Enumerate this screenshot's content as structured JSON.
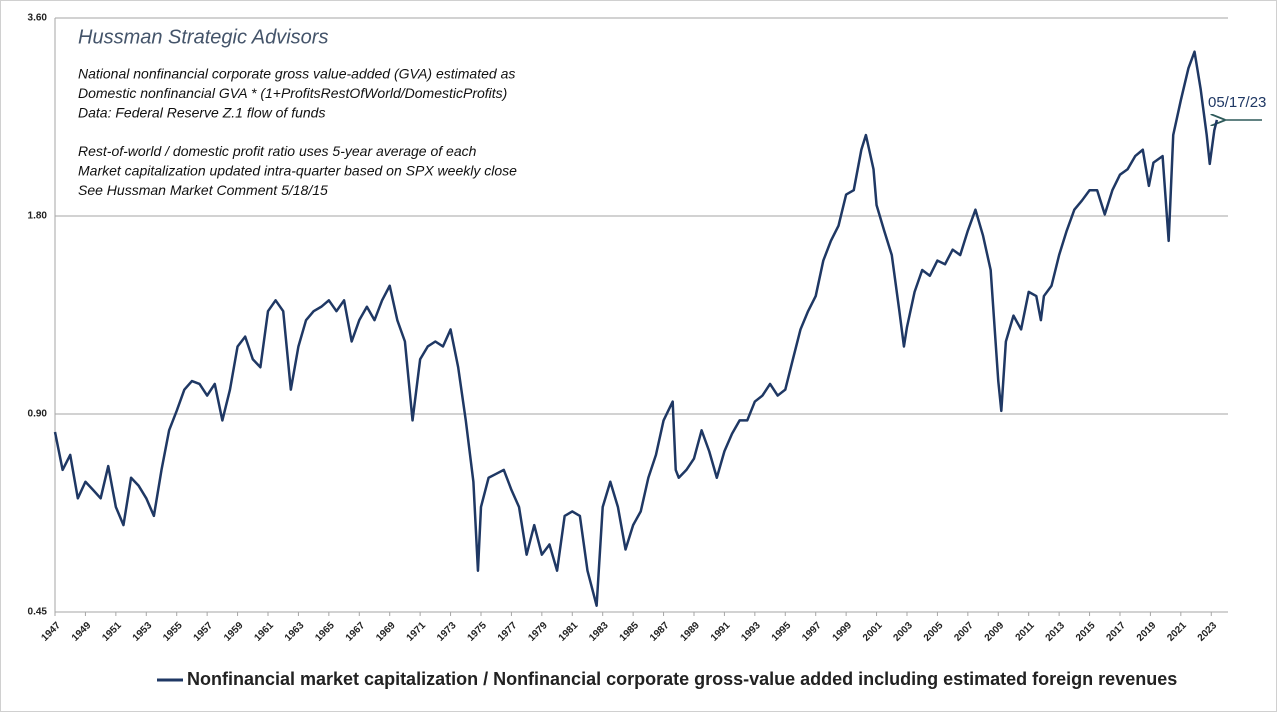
{
  "chart_data": {
    "type": "line",
    "title": "Hussman Strategic Advisors",
    "annotations": [
      "National nonfinancial corporate gross value-added (GVA) estimated as",
      "Domestic nonfinancial GVA * (1+ProfitsRestOfWorld/DomesticProfits)",
      "Data: Federal Reserve Z.1 flow of funds",
      "Rest-of-world / domestic profit ratio uses 5-year average of each",
      "Market capitalization updated intra-quarter based on SPX weekly close",
      "See Hussman Market Comment 5/18/15"
    ],
    "end_label": "05/17/23",
    "log_scale": true,
    "grid": true,
    "legend": "bottom",
    "xlim": [
      1947,
      2024.1
    ],
    "xticks": [
      1947,
      1949,
      1951,
      1953,
      1955,
      1957,
      1959,
      1961,
      1963,
      1965,
      1967,
      1969,
      1971,
      1973,
      1975,
      1977,
      1979,
      1981,
      1983,
      1985,
      1987,
      1989,
      1991,
      1993,
      1995,
      1997,
      1999,
      2001,
      2003,
      2005,
      2007,
      2009,
      2011,
      2013,
      2015,
      2017,
      2019,
      2021,
      2023
    ],
    "ylim": [
      0.45,
      3.6
    ],
    "yticks": [
      {
        "value": 0.45,
        "label": "0.45"
      },
      {
        "value": 0.9,
        "label": "0.90"
      },
      {
        "value": 1.8,
        "label": "1.80"
      },
      {
        "value": 3.6,
        "label": "3.60"
      }
    ],
    "x": [
      1947.0,
      1947.5,
      1948.0,
      1948.5,
      1949.0,
      1949.5,
      1950.0,
      1950.5,
      1951.0,
      1951.5,
      1952.0,
      1952.5,
      1953.0,
      1953.5,
      1954.0,
      1954.5,
      1955.0,
      1955.5,
      1956.0,
      1956.5,
      1957.0,
      1957.5,
      1958.0,
      1958.5,
      1959.0,
      1959.5,
      1960.0,
      1960.5,
      1961.0,
      1961.5,
      1962.0,
      1962.5,
      1963.0,
      1963.5,
      1964.0,
      1964.5,
      1965.0,
      1965.5,
      1966.0,
      1966.5,
      1967.0,
      1967.5,
      1968.0,
      1968.5,
      1969.0,
      1969.5,
      1970.0,
      1970.5,
      1971.0,
      1971.5,
      1972.0,
      1972.5,
      1973.0,
      1973.5,
      1974.0,
      1974.5,
      1974.8,
      1975.0,
      1975.5,
      1976.0,
      1976.5,
      1977.0,
      1977.5,
      1978.0,
      1978.5,
      1979.0,
      1979.5,
      1980.0,
      1980.5,
      1981.0,
      1981.5,
      1982.0,
      1982.6,
      1983.0,
      1983.5,
      1984.0,
      1984.5,
      1985.0,
      1985.5,
      1986.0,
      1986.5,
      1987.0,
      1987.6,
      1987.8,
      1988.0,
      1988.5,
      1989.0,
      1989.5,
      1990.0,
      1990.5,
      1991.0,
      1991.5,
      1992.0,
      1992.5,
      1993.0,
      1993.5,
      1994.0,
      1994.5,
      1995.0,
      1995.5,
      1996.0,
      1996.5,
      1997.0,
      1997.5,
      1998.0,
      1998.5,
      1999.0,
      1999.5,
      2000.0,
      2000.3,
      2000.8,
      2001.0,
      2001.5,
      2002.0,
      2002.5,
      2002.8,
      2003.0,
      2003.5,
      2004.0,
      2004.5,
      2005.0,
      2005.5,
      2006.0,
      2006.5,
      2007.0,
      2007.5,
      2008.0,
      2008.5,
      2009.0,
      2009.2,
      2009.5,
      2010.0,
      2010.5,
      2011.0,
      2011.5,
      2011.8,
      2012.0,
      2012.5,
      2013.0,
      2013.5,
      2014.0,
      2014.5,
      2015.0,
      2015.5,
      2016.0,
      2016.5,
      2017.0,
      2017.5,
      2018.0,
      2018.5,
      2018.9,
      2019.2,
      2019.8,
      2020.2,
      2020.5,
      2021.0,
      2021.5,
      2021.9,
      2022.3,
      2022.7,
      2022.9,
      2023.2,
      2023.37
    ],
    "series": [
      {
        "name": "Nonfinancial market capitalization / Nonfinancial corporate gross-value added including estimated foreign revenues",
        "color": "#1f3864",
        "values": [
          0.845,
          0.74,
          0.78,
          0.67,
          0.71,
          0.69,
          0.67,
          0.75,
          0.65,
          0.61,
          0.72,
          0.7,
          0.67,
          0.63,
          0.74,
          0.85,
          0.91,
          0.98,
          1.01,
          1.0,
          0.96,
          1.0,
          0.88,
          0.98,
          1.14,
          1.18,
          1.09,
          1.06,
          1.29,
          1.34,
          1.29,
          0.98,
          1.14,
          1.25,
          1.29,
          1.31,
          1.34,
          1.29,
          1.34,
          1.16,
          1.25,
          1.31,
          1.25,
          1.34,
          1.41,
          1.25,
          1.16,
          0.88,
          1.09,
          1.14,
          1.16,
          1.14,
          1.21,
          1.06,
          0.88,
          0.71,
          0.52,
          0.65,
          0.72,
          0.73,
          0.74,
          0.69,
          0.65,
          0.55,
          0.61,
          0.55,
          0.57,
          0.52,
          0.63,
          0.64,
          0.63,
          0.52,
          0.46,
          0.65,
          0.71,
          0.65,
          0.56,
          0.61,
          0.64,
          0.72,
          0.78,
          0.88,
          0.94,
          0.74,
          0.72,
          0.74,
          0.77,
          0.85,
          0.79,
          0.72,
          0.79,
          0.84,
          0.88,
          0.88,
          0.94,
          0.96,
          1.0,
          0.96,
          0.98,
          1.09,
          1.21,
          1.29,
          1.36,
          1.54,
          1.65,
          1.74,
          1.94,
          1.97,
          2.27,
          2.39,
          2.12,
          1.87,
          1.71,
          1.57,
          1.29,
          1.14,
          1.22,
          1.38,
          1.49,
          1.46,
          1.54,
          1.52,
          1.6,
          1.57,
          1.71,
          1.84,
          1.68,
          1.49,
          1.01,
          0.91,
          1.16,
          1.27,
          1.21,
          1.38,
          1.36,
          1.25,
          1.36,
          1.41,
          1.57,
          1.71,
          1.84,
          1.9,
          1.97,
          1.97,
          1.81,
          1.97,
          2.08,
          2.12,
          2.22,
          2.27,
          2.0,
          2.17,
          2.22,
          1.65,
          2.39,
          2.7,
          3.02,
          3.2,
          2.81,
          2.39,
          2.16,
          2.43,
          2.52
        ]
      }
    ]
  }
}
